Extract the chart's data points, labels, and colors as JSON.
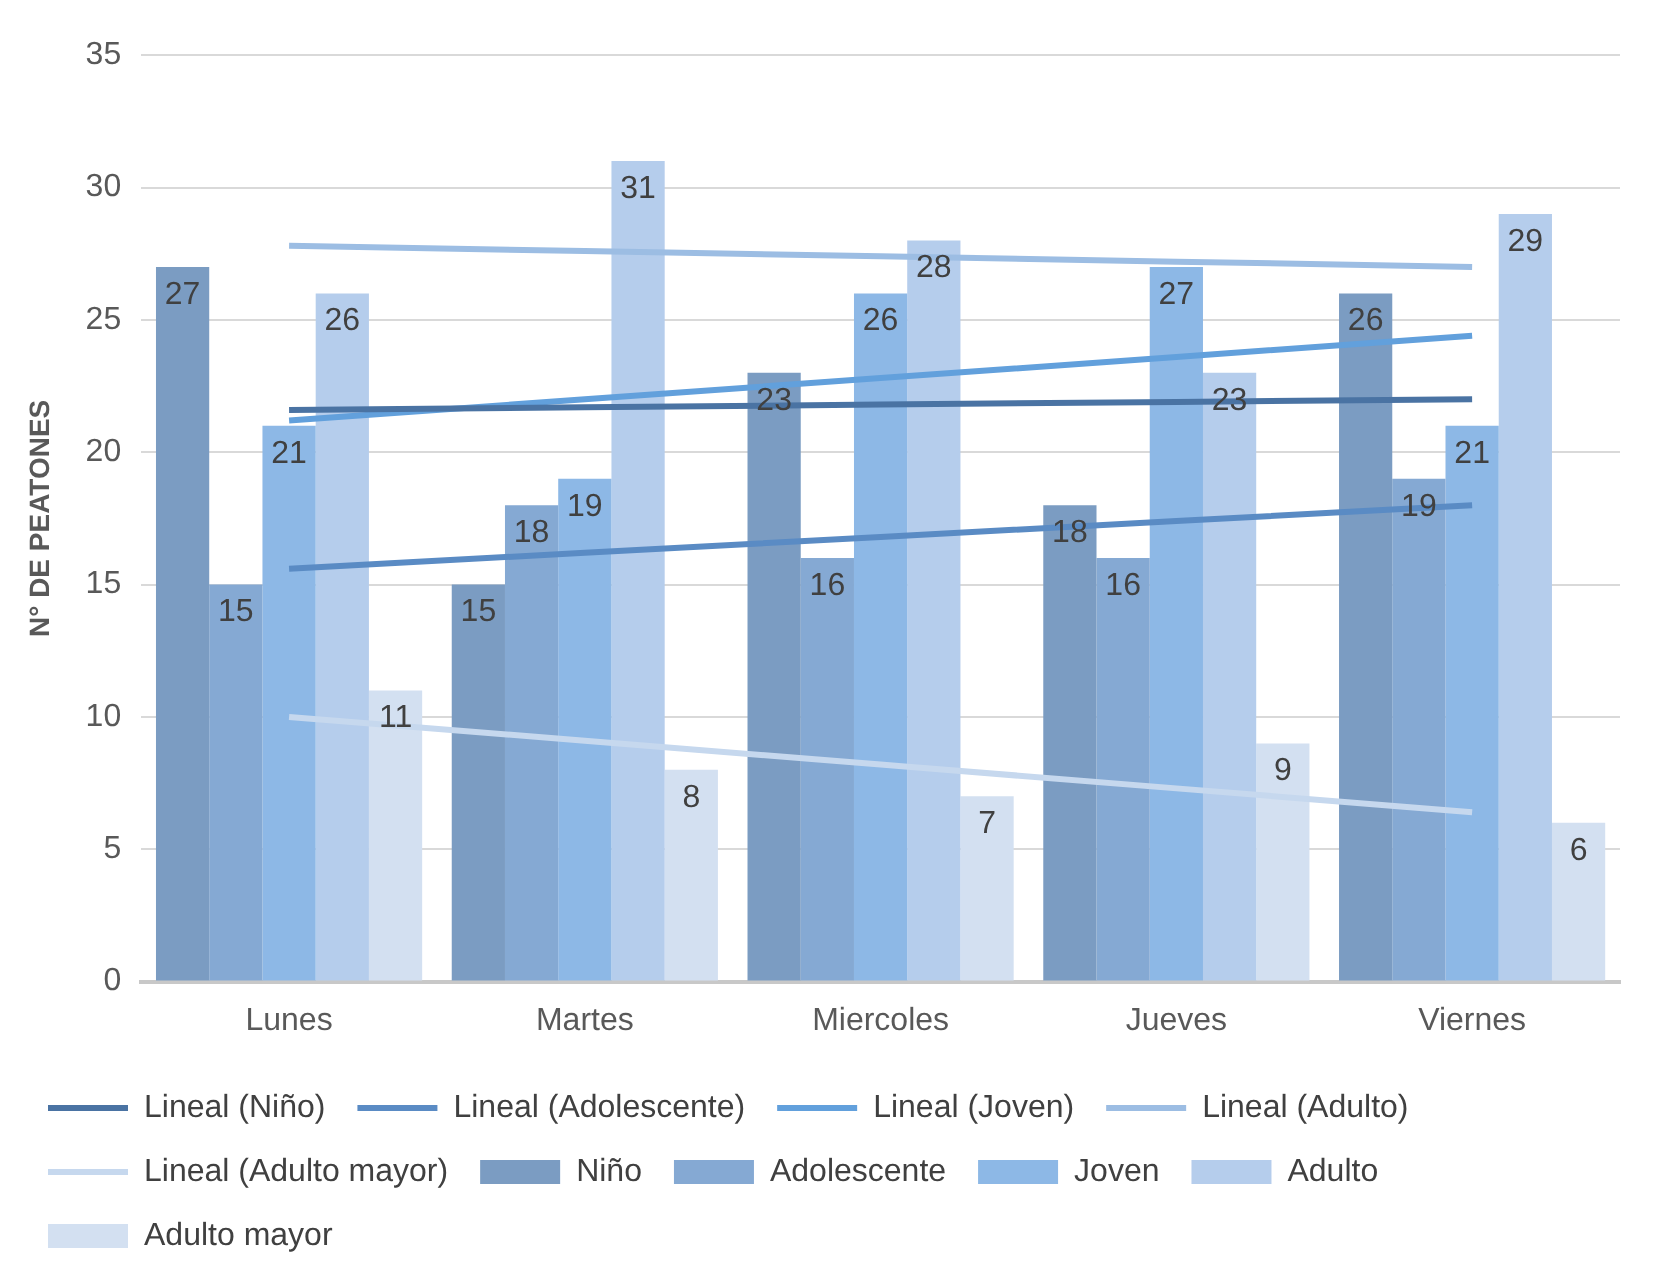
{
  "chart_data": {
    "type": "bar",
    "ylabel": "N° DE PEATONES",
    "categories": [
      "Lunes",
      "Martes",
      "Miercoles",
      "Jueves",
      "Viernes"
    ],
    "ylim": [
      0,
      35
    ],
    "yticks": [
      0,
      5,
      10,
      15,
      20,
      25,
      30,
      35
    ],
    "grid": "y",
    "legend": "bottom",
    "series": [
      {
        "name": "Niño",
        "color": "#7b9cc2",
        "values": [
          27,
          15,
          23,
          18,
          26
        ],
        "value_labels": [
          "27",
          "15",
          "23",
          "18",
          "26"
        ]
      },
      {
        "name": "Adolescente",
        "color": "#85a9d3",
        "values": [
          15,
          18,
          16,
          16,
          19
        ],
        "value_labels": [
          "15",
          "18",
          "16",
          "16",
          "19"
        ]
      },
      {
        "name": "Joven",
        "color": "#8db8e6",
        "values": [
          21,
          19,
          26,
          27,
          21
        ],
        "value_labels": [
          "21",
          "19",
          "26",
          "27",
          "21"
        ]
      },
      {
        "name": "Adulto",
        "color": "#b5cdec",
        "values": [
          26,
          31,
          28,
          23,
          29
        ],
        "value_labels": [
          "26",
          "31",
          "28",
          "23",
          "29"
        ]
      },
      {
        "name": "Adulto mayor",
        "color": "#d3e0f1",
        "values": [
          11,
          8,
          7,
          9,
          6
        ],
        "value_labels": [
          "11",
          "8",
          "7",
          "9",
          "6"
        ]
      },
      {
        "name": "Lineal (Niño)",
        "type": "line",
        "marker": "none",
        "color": "#4a73a3",
        "values": [
          21.6,
          21.7,
          21.8,
          21.9,
          22.0
        ]
      },
      {
        "name": "Lineal (Adolescente)",
        "type": "line",
        "marker": "none",
        "color": "#5a8bc4",
        "values": [
          15.6,
          16.2,
          16.8,
          17.4,
          18.0
        ]
      },
      {
        "name": "Lineal (Joven)",
        "type": "line",
        "marker": "none",
        "color": "#62a0dc",
        "values": [
          21.2,
          22.0,
          22.8,
          23.6,
          24.4
        ]
      },
      {
        "name": "Lineal (Adulto)",
        "type": "line",
        "marker": "none",
        "color": "#9cbde3",
        "values": [
          27.8,
          27.6,
          27.4,
          27.2,
          27.0
        ]
      },
      {
        "name": "Lineal (Adulto mayor)",
        "type": "line",
        "marker": "none",
        "color": "#c6d8ee",
        "values": [
          10.0,
          9.1,
          8.2,
          7.3,
          6.4
        ]
      }
    ]
  }
}
